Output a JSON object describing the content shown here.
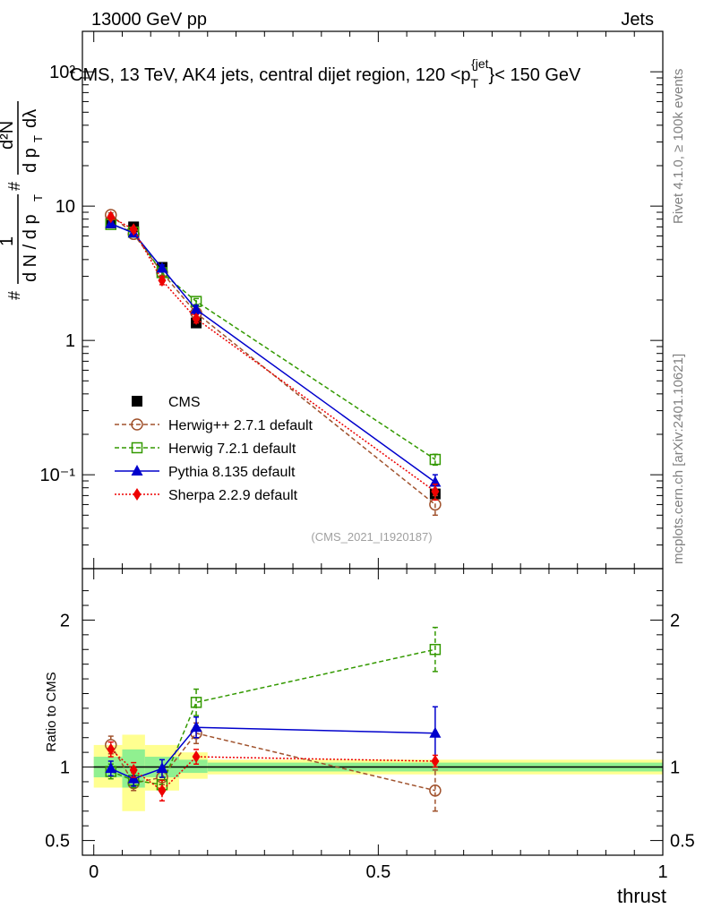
{
  "header": {
    "left": "13000 GeV pp",
    "right": "Jets"
  },
  "side_labels": {
    "rivet": "Rivet 4.1.0, ≥ 100k events",
    "mcplots": "mcplots.cern.ch [arXiv:2401.10621]"
  },
  "chart_data": [
    {
      "type": "line",
      "panel": "main",
      "title": "CMS, 13 TeV, AK4 jets, central dijet region, 120 <p_T^{jet}< 150 GeV",
      "title_parts": {
        "main": "CMS, 13 TeV, AK4 jets, central dijet region, 120 <p",
        "sub": "T",
        "sup": "{jet",
        "tail": "}< 150 GeV"
      },
      "ylabel": "1/dN/dp_T d^2N/dp_T dλ",
      "ylabel_parts": {
        "num": "1",
        "den": "d N / d p",
        "sub": "T",
        "num2": "d²N",
        "den2": "d p",
        "sub2": "T",
        "den2b": "dλ",
        "hash": "#"
      },
      "yscale": "log",
      "ylim": [
        0.02,
        200
      ],
      "xlim": [
        -0.02,
        1.0
      ],
      "ytick_labels": [
        "10⁻¹",
        "1",
        "10",
        "10²"
      ],
      "ytick_values": [
        0.1,
        1,
        10,
        100
      ],
      "watermark": "(CMS_2021_I1920187)",
      "legend_position": "bottom-left",
      "series": [
        {
          "name": "CMS",
          "color": "#000000",
          "marker": "square",
          "line": "none",
          "x": [
            0.03,
            0.07,
            0.12,
            0.18,
            0.6
          ],
          "y": [
            7.5,
            7.0,
            3.5,
            1.35,
            0.072
          ],
          "err": [
            0,
            0,
            0,
            0,
            0
          ]
        },
        {
          "name": "Herwig++ 2.7.1 default",
          "color": "#a0522d",
          "marker": "open-circle",
          "line": "dashed",
          "x": [
            0.03,
            0.07,
            0.12,
            0.18,
            0.6
          ],
          "y": [
            8.6,
            6.2,
            3.2,
            1.6,
            0.06
          ],
          "err": [
            0.3,
            0.2,
            0.15,
            0.1,
            0.01
          ]
        },
        {
          "name": "Herwig 7.2.1 default",
          "color": "#339900",
          "marker": "open-square",
          "line": "dashed",
          "x": [
            0.03,
            0.07,
            0.12,
            0.18,
            0.6
          ],
          "y": [
            7.3,
            6.4,
            3.2,
            1.95,
            0.13
          ],
          "err": [
            0.3,
            0.2,
            0.15,
            0.1,
            0.012
          ]
        },
        {
          "name": "Pythia 8.135 default",
          "color": "#0000cc",
          "marker": "filled-triangle",
          "line": "solid",
          "x": [
            0.03,
            0.07,
            0.12,
            0.18,
            0.6
          ],
          "y": [
            7.4,
            6.3,
            3.45,
            1.7,
            0.088
          ],
          "err": [
            0.3,
            0.2,
            0.2,
            0.12,
            0.012
          ]
        },
        {
          "name": "Sherpa 2.2.9 default",
          "color": "#ee0000",
          "marker": "filled-diamond",
          "line": "dotted",
          "x": [
            0.03,
            0.07,
            0.12,
            0.18,
            0.6
          ],
          "y": [
            8.3,
            6.7,
            2.8,
            1.45,
            0.075
          ],
          "err": [
            0.3,
            0.25,
            0.2,
            0.1,
            0.01
          ]
        }
      ]
    },
    {
      "type": "line",
      "panel": "ratio",
      "ylabel": "Ratio to CMS",
      "xlabel": "thrust",
      "ylim": [
        0.4,
        2.35
      ],
      "xlim": [
        -0.02,
        1.0
      ],
      "ytick_labels": [
        "0.5",
        "1",
        "2"
      ],
      "ytick_values": [
        0.5,
        1,
        2
      ],
      "xtick_labels": [
        "0",
        "0.5",
        "1"
      ],
      "xtick_values": [
        0,
        0.5,
        1
      ],
      "bands": [
        {
          "x0": 0.0,
          "x1": 0.05,
          "green": [
            0.93,
            1.07
          ],
          "yellow": [
            0.86,
            1.15
          ]
        },
        {
          "x0": 0.05,
          "x1": 0.09,
          "green": [
            0.86,
            1.12
          ],
          "yellow": [
            0.7,
            1.22
          ]
        },
        {
          "x0": 0.09,
          "x1": 0.15,
          "green": [
            0.93,
            1.07
          ],
          "yellow": [
            0.84,
            1.15
          ]
        },
        {
          "x0": 0.15,
          "x1": 0.2,
          "green": [
            0.96,
            1.05
          ],
          "yellow": [
            0.92,
            1.1
          ]
        },
        {
          "x0": 0.2,
          "x1": 1.0,
          "green": [
            0.97,
            1.03
          ],
          "yellow": [
            0.95,
            1.05
          ]
        }
      ],
      "series": [
        {
          "name": "Herwig++ 2.7.1 default",
          "color": "#a0522d",
          "marker": "open-circle",
          "line": "dashed",
          "x": [
            0.03,
            0.07,
            0.12,
            0.18,
            0.6
          ],
          "y": [
            1.15,
            0.89,
            0.93,
            1.23,
            0.84
          ],
          "err": [
            0.06,
            0.05,
            0.05,
            0.07,
            0.14
          ]
        },
        {
          "name": "Herwig 7.2.1 default",
          "color": "#339900",
          "marker": "open-square",
          "line": "dashed",
          "x": [
            0.03,
            0.07,
            0.12,
            0.18,
            0.6
          ],
          "y": [
            0.97,
            0.91,
            0.88,
            1.44,
            1.8
          ],
          "err": [
            0.05,
            0.05,
            0.05,
            0.09,
            0.15
          ]
        },
        {
          "name": "Pythia 8.135 default",
          "color": "#0000cc",
          "marker": "filled-triangle",
          "line": "solid",
          "x": [
            0.03,
            0.07,
            0.12,
            0.18,
            0.6
          ],
          "y": [
            0.99,
            0.92,
            0.99,
            1.27,
            1.23
          ],
          "err": [
            0.05,
            0.05,
            0.06,
            0.07,
            0.18
          ]
        },
        {
          "name": "Sherpa 2.2.9 default",
          "color": "#ee0000",
          "marker": "filled-diamond",
          "line": "dotted",
          "x": [
            0.03,
            0.07,
            0.12,
            0.18,
            0.6
          ],
          "y": [
            1.12,
            0.98,
            0.84,
            1.07,
            1.04
          ],
          "err": [
            0.05,
            0.05,
            0.07,
            0.05,
            0.04
          ]
        }
      ]
    }
  ]
}
